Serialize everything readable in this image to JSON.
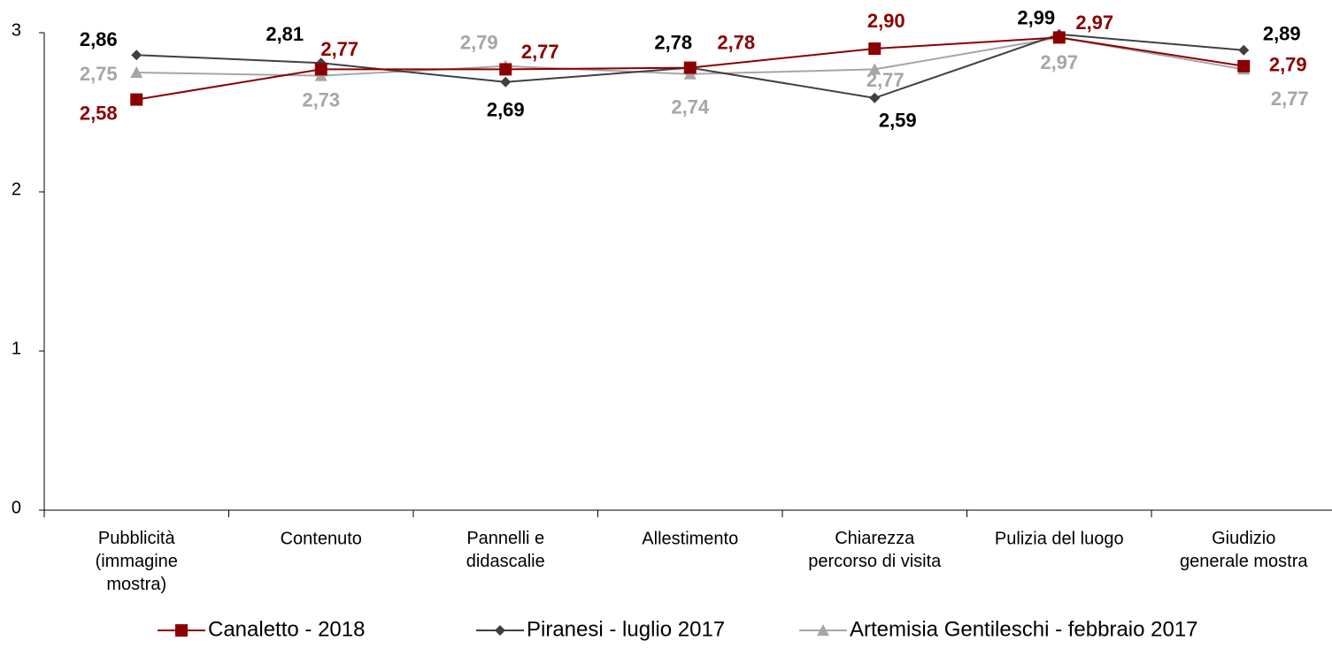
{
  "chart_data": {
    "type": "line",
    "categories": [
      "Pubblicità\n(immagine\nmostra)",
      "Contenuto",
      "Pannelli e\ndidascalie",
      "Allestimento",
      "Chiarezza\npercorso di visita",
      "Pulizia del luogo",
      "Giudizio\ngenerale mostra"
    ],
    "series": [
      {
        "name": "Canaletto - 2018",
        "color": "#8b0000",
        "marker": "square",
        "values": [
          2.58,
          2.77,
          2.77,
          2.78,
          2.9,
          2.97,
          2.79
        ],
        "value_labels": [
          "2,58",
          "2,77",
          "2,77",
          "2,78",
          "2,90",
          "2,97",
          "2,79"
        ]
      },
      {
        "name": "Piranesi - luglio 2017",
        "color": "#404040",
        "label_color": "#000000",
        "marker": "diamond",
        "values": [
          2.86,
          2.81,
          2.69,
          2.78,
          2.59,
          2.99,
          2.89
        ],
        "value_labels": [
          "2,86",
          "2,81",
          "2,69",
          "2,78",
          "2,59",
          "2,99",
          "2,89"
        ]
      },
      {
        "name": "Artemisia Gentileschi - febbraio  2017",
        "color": "#a6a6a6",
        "marker": "triangle",
        "values": [
          2.75,
          2.73,
          2.79,
          2.74,
          2.77,
          2.97,
          2.77
        ],
        "value_labels": [
          "2,75",
          "2,73",
          "2,79",
          "2,74",
          "2,77",
          "2,97",
          "2,77"
        ]
      }
    ],
    "ylim": [
      0,
      3
    ],
    "yticks": [
      0,
      1,
      2,
      3
    ],
    "legend": "bottom"
  }
}
